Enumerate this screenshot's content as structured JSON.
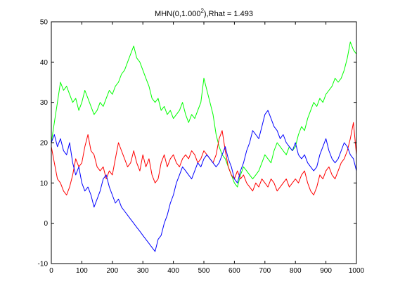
{
  "chart_data": {
    "type": "line",
    "title_base": "MHN(0,1.000",
    "title_exp": "2",
    "title_tail": "),Rhat = 1.493",
    "xlabel": "",
    "ylabel": "",
    "xlim": [
      0,
      1000
    ],
    "ylim": [
      -10,
      50
    ],
    "xticks": [
      0,
      100,
      200,
      300,
      400,
      500,
      600,
      700,
      800,
      900,
      1000
    ],
    "yticks": [
      -10,
      0,
      10,
      20,
      30,
      40,
      50
    ],
    "grid": false,
    "legend": "none",
    "series": [
      {
        "color": "#00ff00",
        "x": [
          0,
          10,
          20,
          30,
          40,
          50,
          60,
          70,
          80,
          90,
          100,
          110,
          120,
          130,
          140,
          150,
          160,
          170,
          180,
          190,
          200,
          210,
          220,
          230,
          240,
          250,
          260,
          270,
          280,
          290,
          300,
          310,
          320,
          330,
          340,
          350,
          360,
          370,
          380,
          390,
          400,
          410,
          420,
          430,
          440,
          450,
          460,
          470,
          480,
          490,
          500,
          510,
          520,
          530,
          540,
          550,
          560,
          570,
          580,
          590,
          600,
          610,
          620,
          630,
          640,
          650,
          660,
          670,
          680,
          690,
          700,
          710,
          720,
          730,
          740,
          750,
          760,
          770,
          780,
          790,
          800,
          810,
          820,
          830,
          840,
          850,
          860,
          870,
          880,
          890,
          900,
          910,
          920,
          930,
          940,
          950,
          960,
          970,
          980,
          990,
          1000
        ],
        "values": [
          20,
          25,
          30,
          35,
          33,
          34,
          32,
          30,
          31,
          28,
          30,
          33,
          31,
          29,
          27,
          28,
          30,
          29,
          31,
          33,
          32,
          34,
          35,
          37,
          38,
          40,
          42,
          44,
          41,
          40,
          38,
          36,
          34,
          31,
          30,
          31,
          28,
          29,
          27,
          28,
          26,
          27,
          28,
          30,
          27,
          25,
          27,
          26,
          28,
          30,
          36,
          33,
          30,
          27,
          22,
          19,
          17,
          16,
          14,
          12,
          10,
          9,
          12,
          14,
          13,
          12,
          11,
          12,
          13,
          15,
          17,
          16,
          15,
          18,
          20,
          19,
          18,
          17,
          19,
          18,
          19,
          22,
          24,
          23,
          26,
          28,
          30,
          29,
          31,
          30,
          32,
          33,
          34,
          36,
          35,
          36,
          38,
          41,
          45,
          43,
          42
        ]
      },
      {
        "color": "#ff0000",
        "x": [
          0,
          10,
          20,
          30,
          40,
          50,
          60,
          70,
          80,
          90,
          100,
          110,
          120,
          130,
          140,
          150,
          160,
          170,
          180,
          190,
          200,
          210,
          220,
          230,
          240,
          250,
          260,
          270,
          280,
          290,
          300,
          310,
          320,
          330,
          340,
          350,
          360,
          370,
          380,
          390,
          400,
          410,
          420,
          430,
          440,
          450,
          460,
          470,
          480,
          490,
          500,
          510,
          520,
          530,
          540,
          550,
          560,
          570,
          580,
          590,
          600,
          610,
          620,
          630,
          640,
          650,
          660,
          670,
          680,
          690,
          700,
          710,
          720,
          730,
          740,
          750,
          760,
          770,
          780,
          790,
          800,
          810,
          820,
          830,
          840,
          850,
          860,
          870,
          880,
          890,
          900,
          910,
          920,
          930,
          940,
          950,
          960,
          970,
          980,
          990,
          1000
        ],
        "values": [
          19,
          15,
          11,
          10,
          8,
          7,
          9,
          12,
          16,
          14,
          15,
          19,
          22,
          18,
          17,
          14,
          13,
          14,
          11,
          13,
          12,
          16,
          20,
          18,
          16,
          14,
          15,
          18,
          15,
          13,
          17,
          14,
          16,
          12,
          10,
          11,
          15,
          17,
          14,
          16,
          17,
          15,
          14,
          16,
          17,
          16,
          18,
          17,
          15,
          16,
          18,
          17,
          16,
          15,
          17,
          21,
          23,
          18,
          14,
          12,
          11,
          13,
          11,
          12,
          10,
          9,
          8,
          10,
          9,
          11,
          10,
          9,
          11,
          10,
          8,
          9,
          10,
          11,
          9,
          10,
          11,
          10,
          12,
          13,
          10,
          8,
          7,
          9,
          12,
          11,
          13,
          14,
          12,
          11,
          13,
          15,
          16,
          18,
          21,
          25,
          17
        ]
      },
      {
        "color": "#0000ff",
        "x": [
          0,
          10,
          20,
          30,
          40,
          50,
          60,
          70,
          80,
          90,
          100,
          110,
          120,
          130,
          140,
          150,
          160,
          170,
          180,
          190,
          200,
          210,
          220,
          230,
          240,
          250,
          260,
          270,
          280,
          290,
          300,
          310,
          320,
          330,
          340,
          350,
          360,
          370,
          380,
          390,
          400,
          410,
          420,
          430,
          440,
          450,
          460,
          470,
          480,
          490,
          500,
          510,
          520,
          530,
          540,
          550,
          560,
          570,
          580,
          590,
          600,
          610,
          620,
          630,
          640,
          650,
          660,
          670,
          680,
          690,
          700,
          710,
          720,
          730,
          740,
          750,
          760,
          770,
          780,
          790,
          800,
          810,
          820,
          830,
          840,
          850,
          860,
          870,
          880,
          890,
          900,
          910,
          920,
          930,
          940,
          950,
          960,
          970,
          980,
          990,
          1000
        ],
        "values": [
          20,
          22,
          19,
          21,
          18,
          17,
          20,
          15,
          12,
          14,
          10,
          8,
          9,
          7,
          4,
          6,
          8,
          11,
          12,
          9,
          7,
          5,
          6,
          4,
          3,
          2,
          1,
          0,
          -1,
          -2,
          -3,
          -4,
          -5,
          -6,
          -7,
          -4,
          -3,
          0,
          2,
          5,
          7,
          10,
          12,
          14,
          13,
          12,
          11,
          13,
          15,
          14,
          16,
          17,
          16,
          15,
          14,
          15,
          17,
          19,
          16,
          14,
          11,
          10,
          13,
          15,
          18,
          20,
          23,
          22,
          21,
          24,
          27,
          28,
          26,
          24,
          23,
          21,
          22,
          20,
          19,
          18,
          20,
          17,
          16,
          17,
          15,
          14,
          13,
          14,
          17,
          19,
          21,
          18,
          16,
          15,
          16,
          18,
          20,
          19,
          17,
          16,
          13
        ]
      }
    ]
  }
}
